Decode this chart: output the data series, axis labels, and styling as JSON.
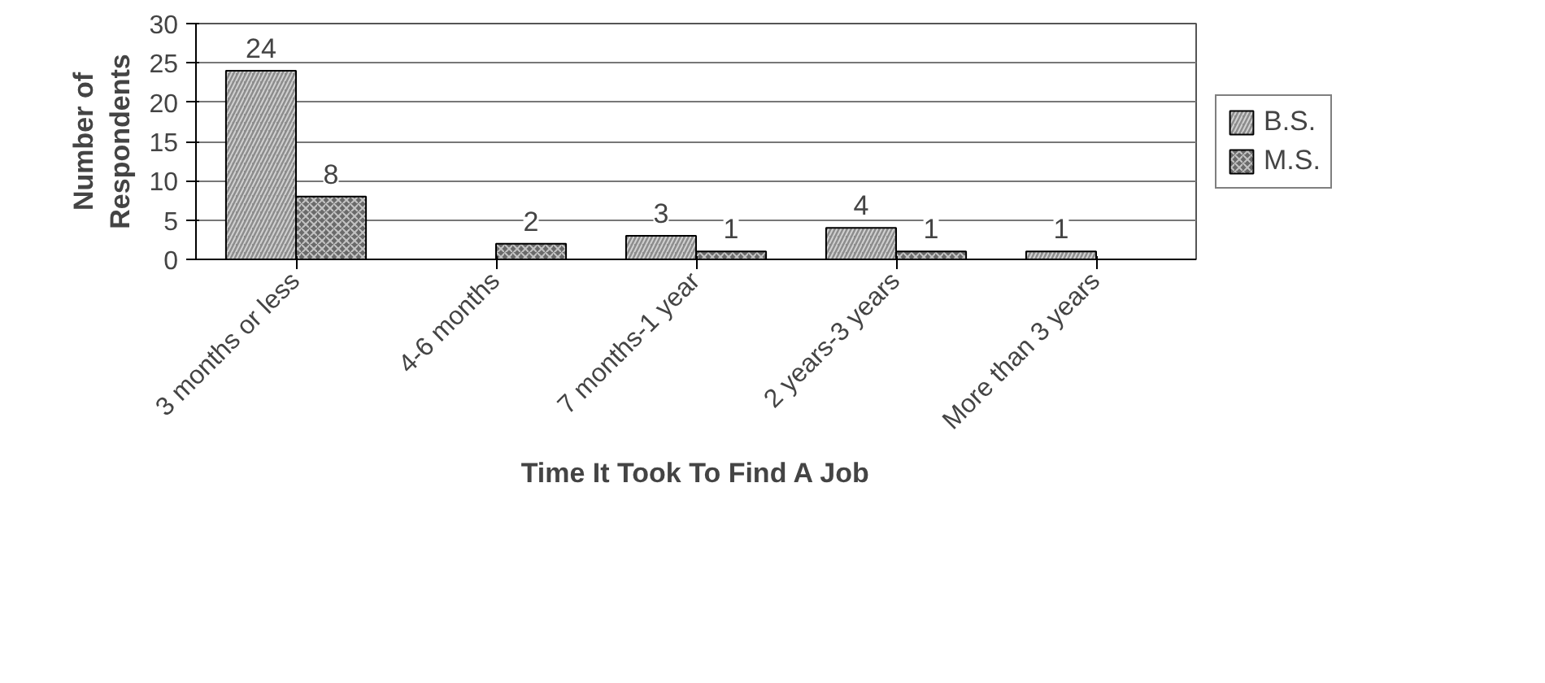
{
  "chart_data": {
    "type": "bar",
    "xlabel": "Time It Took To Find A Job",
    "ylabel": "Number of\nRespondents",
    "categories": [
      "3 months or less",
      "4-6 months",
      "7 months-1 year",
      "2 years-3 years",
      "More than 3 years"
    ],
    "series": [
      {
        "name": "B.S.",
        "color": "#8c8c8c",
        "values": [
          24,
          null,
          3,
          4,
          1
        ]
      },
      {
        "name": "M.S.",
        "color": "#6a6a6a",
        "values": [
          8,
          2,
          1,
          1,
          null
        ]
      }
    ],
    "ylim": [
      0,
      30
    ],
    "yticks": [
      0,
      5,
      10,
      15,
      20,
      25,
      30
    ],
    "grid": "y",
    "legend": "right",
    "data_labels": true
  }
}
